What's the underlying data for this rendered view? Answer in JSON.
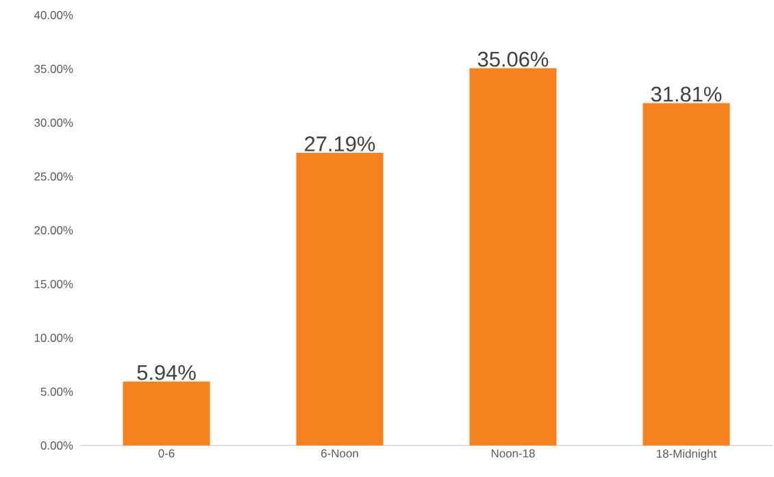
{
  "chart_data": {
    "type": "bar",
    "categories": [
      "0-6",
      "6-Noon",
      "Noon-18",
      "18-Midnight"
    ],
    "values": [
      5.94,
      27.19,
      35.06,
      31.81
    ],
    "value_labels": [
      "5.94%",
      "27.19%",
      "35.06%",
      "31.81%"
    ],
    "color": "#f5821f",
    "ylim": [
      0,
      40
    ],
    "yticks": [
      {
        "value": 0,
        "label": "0.00%"
      },
      {
        "value": 5,
        "label": "5.00%"
      },
      {
        "value": 10,
        "label": "10.00%"
      },
      {
        "value": 15,
        "label": "15.00%"
      },
      {
        "value": 20,
        "label": "20.00%"
      },
      {
        "value": 25,
        "label": "25.00%"
      },
      {
        "value": 30,
        "label": "30.00%"
      },
      {
        "value": 35,
        "label": "35.00%"
      },
      {
        "value": 40,
        "label": "40.00%"
      }
    ]
  }
}
